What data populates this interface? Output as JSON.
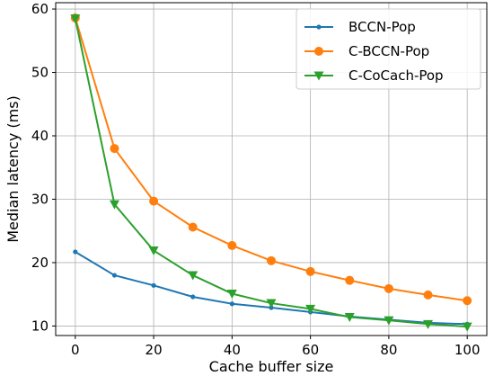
{
  "chart_data": {
    "type": "line",
    "title": "",
    "xlabel": "Cache buffer size",
    "ylabel": "Median latency (ms)",
    "xlim": [
      -5,
      105
    ],
    "ylim": [
      8.5,
      61
    ],
    "xticks": [
      0,
      20,
      40,
      60,
      80,
      100
    ],
    "yticks": [
      10,
      20,
      30,
      40,
      50,
      60
    ],
    "grid": true,
    "legend_position": "top-right",
    "x": [
      0,
      10,
      20,
      30,
      40,
      50,
      60,
      70,
      80,
      90,
      100
    ],
    "series": [
      {
        "name": "BCCN-Pop",
        "color": "#1f77b4",
        "marker": "point",
        "values": [
          21.7,
          18.0,
          16.4,
          14.6,
          13.5,
          12.9,
          12.2,
          11.5,
          11.0,
          10.5,
          10.3
        ]
      },
      {
        "name": "C-BCCN-Pop",
        "color": "#ff7f0e",
        "marker": "circle",
        "values": [
          58.6,
          38.0,
          29.7,
          25.6,
          22.7,
          20.3,
          18.6,
          17.2,
          15.9,
          14.9,
          14.0
        ]
      },
      {
        "name": "C-CoCach-Pop",
        "color": "#2ca02c",
        "marker": "triangle-down",
        "values": [
          58.5,
          29.2,
          21.9,
          18.0,
          15.1,
          13.6,
          12.7,
          11.4,
          10.9,
          10.3,
          9.9
        ]
      }
    ]
  }
}
